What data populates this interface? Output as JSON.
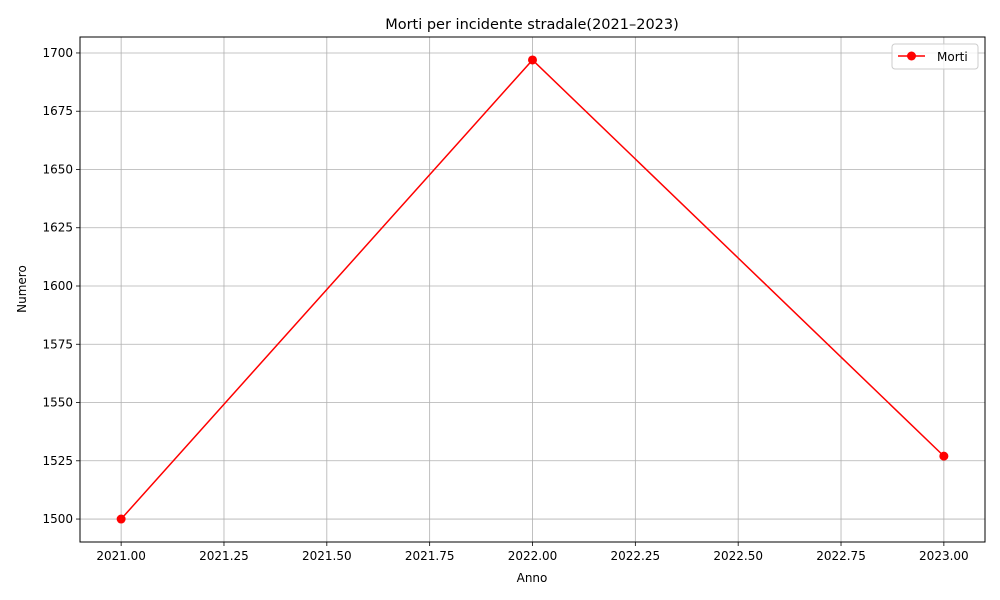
{
  "chart_data": {
    "type": "line",
    "title": "Morti per incidente stradale(2021–2023)",
    "xlabel": "Anno",
    "ylabel": "Numero",
    "xlim": [
      2020.9,
      2023.1
    ],
    "ylim": [
      1490.15,
      1706.85
    ],
    "x_ticks": [
      2021.0,
      2021.25,
      2021.5,
      2021.75,
      2022.0,
      2022.25,
      2022.5,
      2022.75,
      2023.0
    ],
    "x_tick_labels": [
      "2021.00",
      "2021.25",
      "2021.50",
      "2021.75",
      "2022.00",
      "2022.25",
      "2022.50",
      "2022.75",
      "2023.00"
    ],
    "y_ticks": [
      1500,
      1525,
      1550,
      1575,
      1600,
      1625,
      1650,
      1675,
      1700
    ],
    "y_tick_labels": [
      "1500",
      "1525",
      "1550",
      "1575",
      "1600",
      "1625",
      "1650",
      "1675",
      "1700"
    ],
    "grid": true,
    "legend_position": "top-right",
    "series": [
      {
        "name": "Morti",
        "color": "#ff0000",
        "marker": "circle",
        "x": [
          2021,
          2022,
          2023
        ],
        "y": [
          1500,
          1697,
          1527
        ]
      }
    ]
  }
}
